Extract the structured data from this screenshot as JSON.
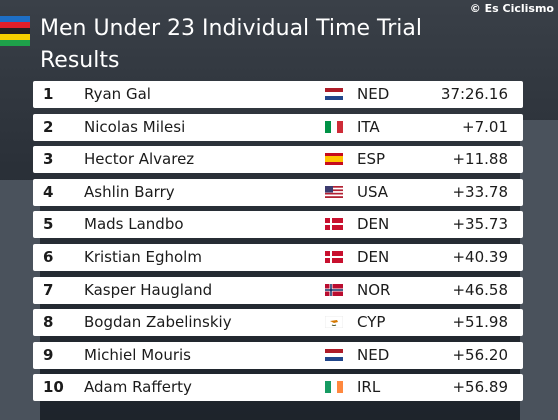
{
  "header": {
    "title_line1": "Men Under 23 Individual Time Trial",
    "title_line2": "Results",
    "watermark": "© Es Ciclismo"
  },
  "table": {
    "rows": [
      [
        1,
        "Ryan Gal",
        "NED",
        "37:26.16"
      ],
      [
        2,
        "Nicolas Milesi",
        "ITA",
        "+7.01"
      ],
      [
        3,
        "Hector Alvarez",
        "ESP",
        "+11.88"
      ],
      [
        4,
        "Ashlin Barry",
        "USA",
        "+33.78"
      ],
      [
        5,
        "Mads Landbo",
        "DEN",
        "+35.73"
      ],
      [
        6,
        "Kristian Egholm",
        "DEN",
        "+40.39"
      ],
      [
        7,
        "Kasper Haugland",
        "NOR",
        "+46.58"
      ],
      [
        8,
        "Bogdan Zabelinskiy",
        "CYP",
        "+51.98"
      ],
      [
        9,
        "Michiel Mouris",
        "NED",
        "+56.20"
      ],
      [
        10,
        "Adam Rafferty",
        "IRL",
        "+56.89"
      ]
    ]
  }
}
